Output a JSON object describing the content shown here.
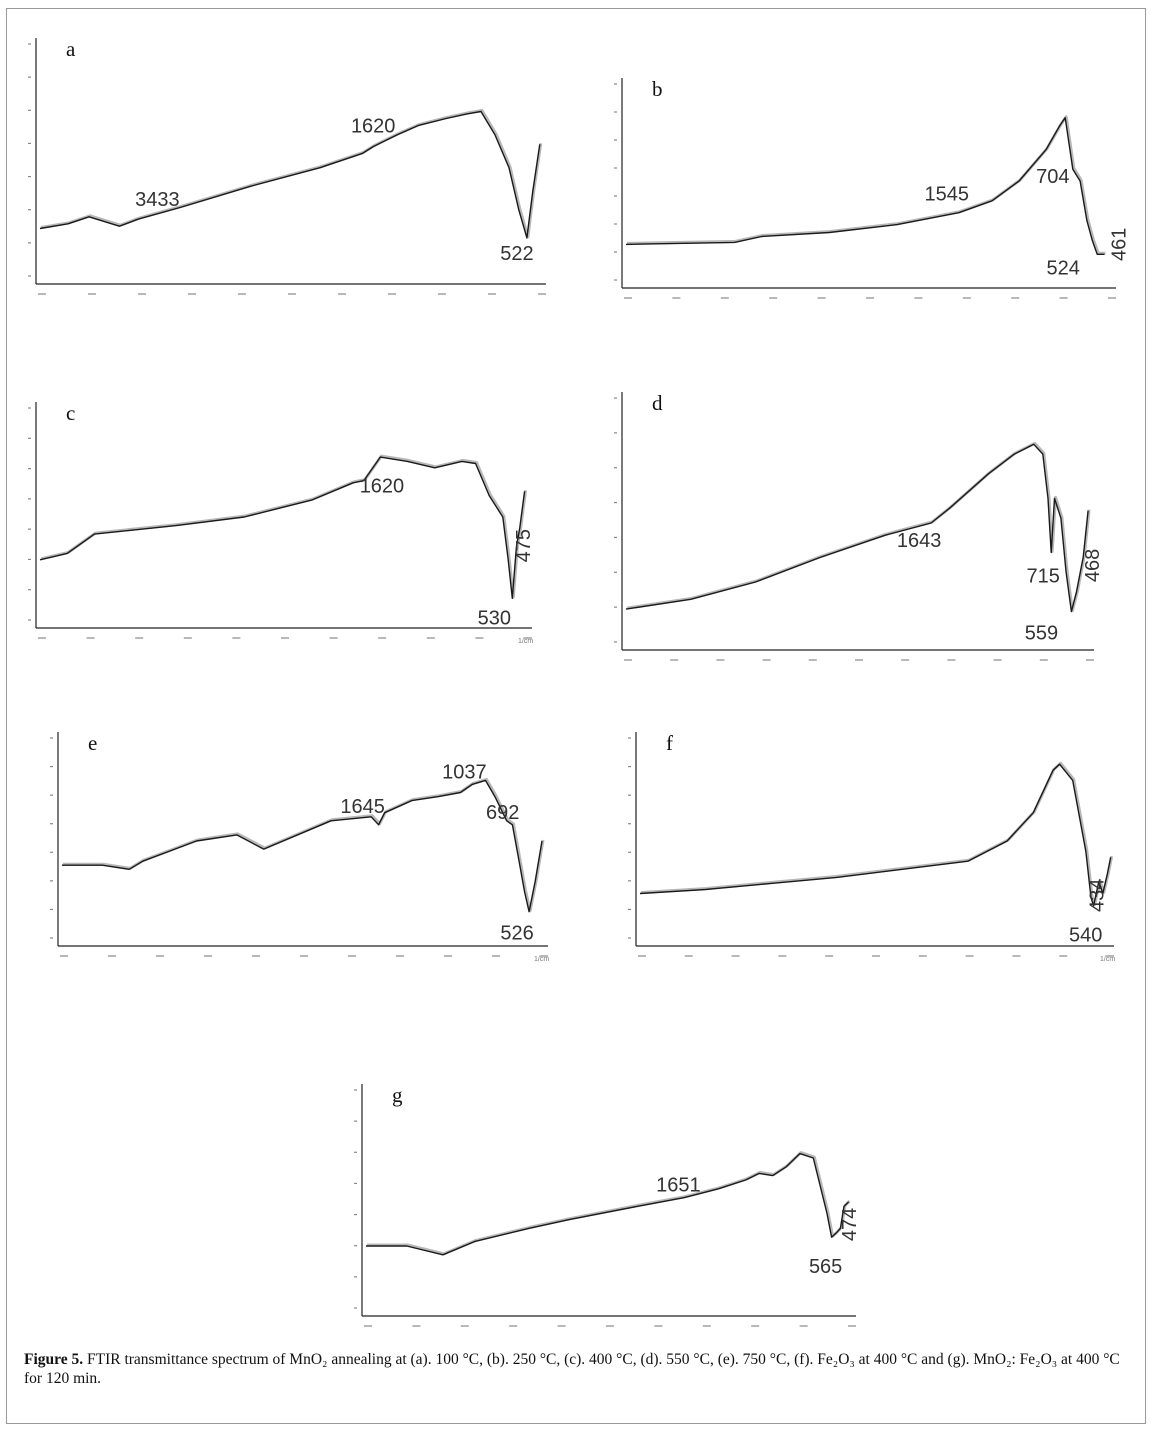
{
  "figure": {
    "number_label": "Figure 5.",
    "caption_text": "FTIR transmittance spectrum of MnO₂ annealing at (a). 100 °C, (b). 250 °C, (c). 400 °C, (d). 550 °C, (e). 750 °C, (f). Fe₂O₃ at 400 °C and (g). MnO₂: Fe₂O₃ at 400 °C for 120 min."
  },
  "chart_data": [
    {
      "type": "line",
      "panel": "a",
      "xlim": [
        4000,
        400
      ],
      "ylim": [
        0,
        100
      ],
      "peak_labels": [
        "3433",
        "1620",
        "522"
      ],
      "x": [
        4000,
        3800,
        3650,
        3433,
        3300,
        3000,
        2500,
        2000,
        1700,
        1620,
        1450,
        1300,
        1100,
        950,
        850,
        750,
        650,
        580,
        522,
        480,
        430
      ],
      "y": [
        22,
        24,
        27,
        23,
        26,
        31,
        40,
        48,
        54,
        57,
        62,
        66,
        69,
        71,
        72,
        62,
        48,
        30,
        18,
        38,
        58
      ]
    },
    {
      "type": "line",
      "panel": "b",
      "xlim": [
        4000,
        400
      ],
      "ylim": [
        0,
        100
      ],
      "peak_labels": [
        "1545",
        "704",
        "524",
        "461"
      ],
      "x": [
        4000,
        3200,
        3000,
        2500,
        2000,
        1545,
        1300,
        1100,
        900,
        800,
        760,
        704,
        650,
        600,
        560,
        524,
        470
      ],
      "y": [
        20,
        21,
        24,
        26,
        30,
        36,
        42,
        52,
        68,
        80,
        84,
        58,
        52,
        32,
        22,
        15,
        15
      ]
    },
    {
      "type": "line",
      "panel": "c",
      "xlim": [
        4000,
        400
      ],
      "ylim": [
        0,
        100
      ],
      "peak_labels": [
        "1620",
        "530",
        "475"
      ],
      "x": [
        4000,
        3800,
        3600,
        3000,
        2500,
        2000,
        1700,
        1620,
        1500,
        1300,
        1100,
        900,
        800,
        700,
        600,
        560,
        530,
        500,
        475,
        440
      ],
      "y": [
        30,
        33,
        42,
        46,
        50,
        58,
        66,
        67,
        78,
        76,
        73,
        76,
        75,
        60,
        50,
        30,
        12,
        36,
        45,
        62
      ]
    },
    {
      "type": "line",
      "panel": "d",
      "xlim": [
        4000,
        400
      ],
      "ylim": [
        0,
        100
      ],
      "peak_labels": [
        "1643",
        "715",
        "559",
        "468"
      ],
      "x": [
        4000,
        3500,
        3000,
        2500,
        2000,
        1643,
        1500,
        1200,
        1000,
        850,
        780,
        740,
        715,
        690,
        640,
        600,
        559,
        520,
        490,
        468,
        430
      ],
      "y": [
        15,
        19,
        26,
        36,
        45,
        50,
        56,
        70,
        78,
        82,
        78,
        60,
        38,
        60,
        52,
        30,
        14,
        22,
        30,
        36,
        55
      ]
    },
    {
      "type": "line",
      "panel": "e",
      "xlim": [
        4000,
        400
      ],
      "ylim": [
        0,
        100
      ],
      "peak_labels": [
        "1645",
        "1037",
        "692",
        "526"
      ],
      "x": [
        4000,
        3700,
        3500,
        3400,
        3200,
        3000,
        2700,
        2500,
        2000,
        1700,
        1645,
        1600,
        1400,
        1200,
        1037,
        950,
        850,
        780,
        692,
        650,
        600,
        560,
        526,
        480,
        430
      ],
      "y": [
        38,
        38,
        36,
        40,
        45,
        50,
        53,
        46,
        60,
        62,
        58,
        64,
        70,
        72,
        74,
        78,
        80,
        72,
        60,
        58,
        40,
        25,
        15,
        30,
        50
      ]
    },
    {
      "type": "line",
      "panel": "f",
      "xlim": [
        4000,
        400
      ],
      "ylim": [
        0,
        100
      ],
      "peak_labels": [
        "540",
        "434"
      ],
      "x": [
        4000,
        3500,
        3000,
        2500,
        2000,
        1500,
        1200,
        1000,
        850,
        800,
        700,
        600,
        560,
        540,
        500,
        470,
        434,
        410
      ],
      "y": [
        24,
        26,
        29,
        32,
        36,
        40,
        50,
        64,
        85,
        88,
        80,
        45,
        22,
        18,
        30,
        24,
        34,
        42
      ]
    },
    {
      "type": "line",
      "panel": "g",
      "xlim": [
        4000,
        400
      ],
      "ylim": [
        0,
        100
      ],
      "peak_labels": [
        "1651",
        "565",
        "474"
      ],
      "x": [
        4000,
        3700,
        3433,
        3200,
        2800,
        2500,
        2000,
        1651,
        1400,
        1200,
        1100,
        1000,
        900,
        800,
        700,
        600,
        565,
        530,
        500,
        474,
        440
      ],
      "y": [
        30,
        30,
        26,
        32,
        38,
        42,
        48,
        52,
        56,
        60,
        63,
        62,
        66,
        72,
        70,
        45,
        34,
        36,
        38,
        48,
        50
      ]
    }
  ],
  "colors": {
    "trace": "#1a1a1a",
    "trace_shadow": "#b8b8b8",
    "axis": "#222222",
    "tick": "#888888"
  }
}
